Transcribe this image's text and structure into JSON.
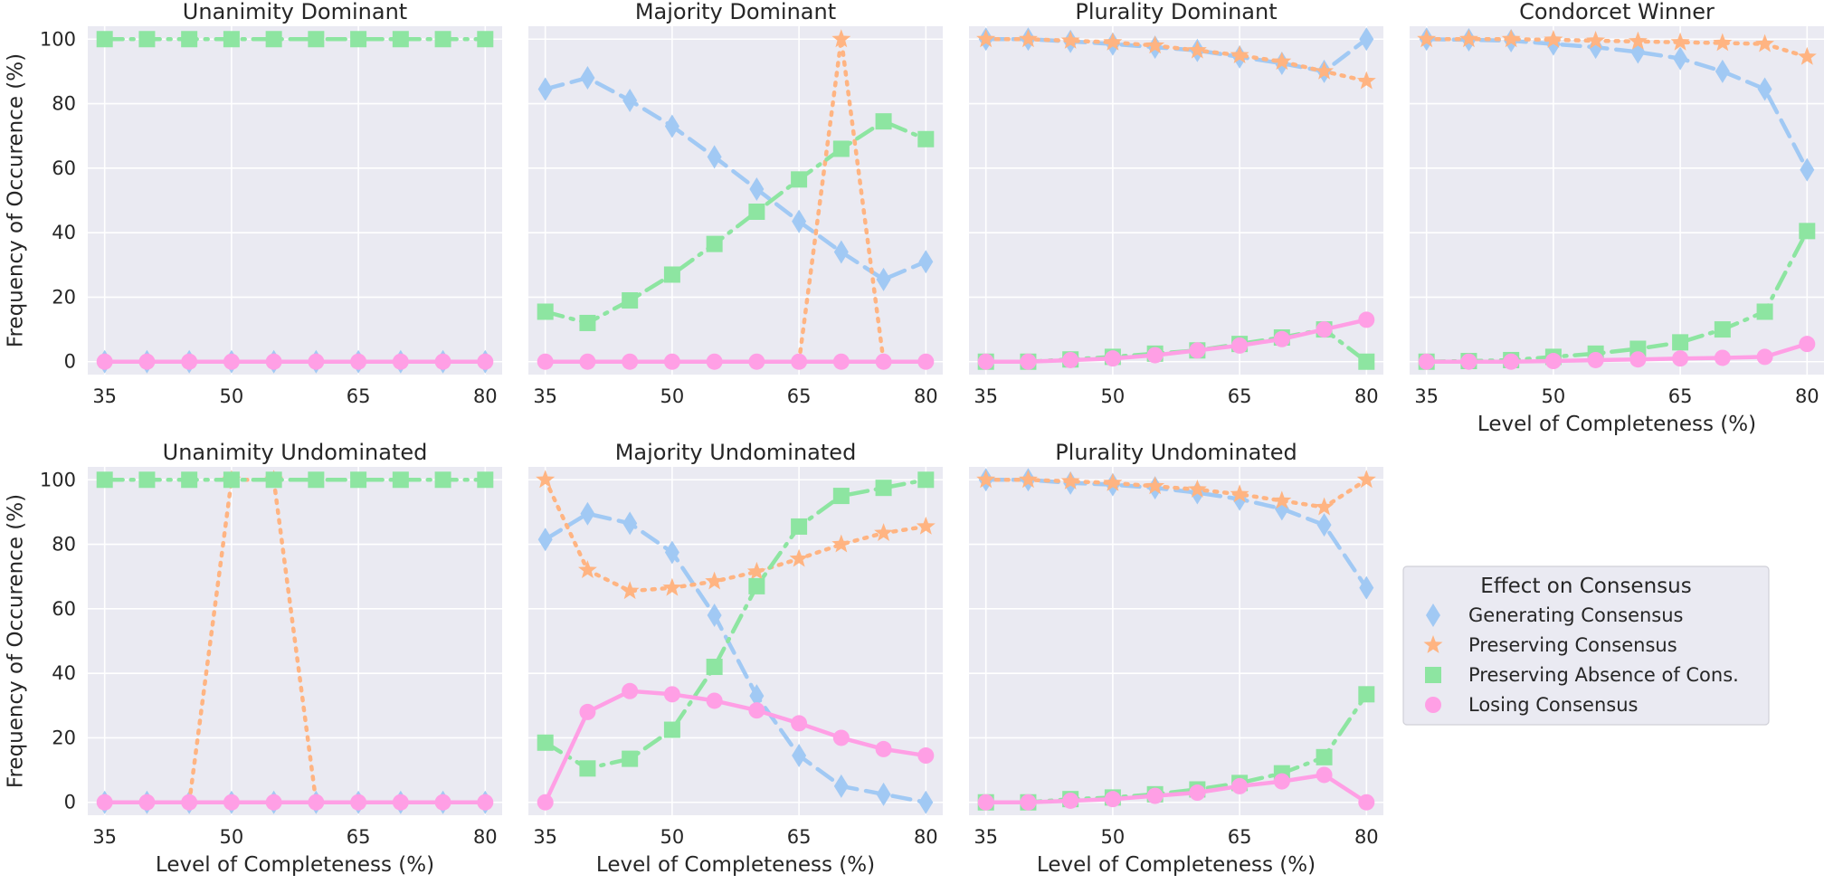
{
  "chart_data": {
    "type": "line",
    "x": [
      35,
      40,
      45,
      50,
      55,
      60,
      65,
      70,
      75,
      80
    ],
    "x_ticks": [
      "35",
      "50",
      "65",
      "80"
    ],
    "y_ticks": [
      "0",
      "20",
      "40",
      "60",
      "80",
      "100"
    ],
    "ylim": [
      -4,
      104
    ],
    "xlim": [
      33,
      82
    ],
    "xlabel": "Level of Completeness (%)",
    "ylabel": "Frequency of Occurence (%)",
    "grid": true,
    "legend": {
      "title": "Effect on Consensus",
      "placement": "right",
      "entries": [
        {
          "key": "gen",
          "label": "Generating Consensus",
          "color": "#a1c9f4",
          "marker": "diamond",
          "dash": "dashed"
        },
        {
          "key": "pres",
          "label": "Preserving Consensus",
          "color": "#ffb482",
          "marker": "star",
          "dash": "dotted"
        },
        {
          "key": "abs",
          "label": "Preserving Absence of Cons.",
          "color": "#8de5a1",
          "marker": "square",
          "dash": "dashdot"
        },
        {
          "key": "lose",
          "label": "Losing Consensus",
          "color": "#ff9fe5",
          "marker": "circle",
          "dash": "solid"
        }
      ]
    },
    "panels": [
      {
        "title": "Unanimity Dominant",
        "series": {
          "gen": [
            0,
            0,
            0,
            0,
            0,
            0,
            0,
            0,
            0,
            0
          ],
          "pres": [
            null,
            null,
            null,
            null,
            null,
            null,
            null,
            null,
            null,
            null
          ],
          "abs": [
            100,
            100,
            100,
            100,
            100,
            100,
            100,
            100,
            100,
            100
          ],
          "lose": [
            0,
            0,
            0,
            0,
            0,
            0,
            0,
            0,
            0,
            0
          ]
        }
      },
      {
        "title": "Majority Dominant",
        "series": {
          "gen": [
            84.5,
            88,
            81,
            73,
            63.5,
            53.5,
            43.5,
            34,
            25.5,
            31
          ],
          "pres": [
            null,
            null,
            null,
            null,
            null,
            null,
            0,
            100,
            0,
            null
          ],
          "abs": [
            15.5,
            12,
            19,
            27,
            36.5,
            46.5,
            56.5,
            66,
            74.5,
            69
          ],
          "lose": [
            0,
            0,
            0,
            0,
            0,
            0,
            0,
            0,
            0,
            0
          ]
        }
      },
      {
        "title": "Plurality Dominant",
        "series": {
          "gen": [
            100,
            100,
            99.3,
            98.5,
            97.5,
            96.5,
            94.5,
            92.5,
            90,
            100
          ],
          "pres": [
            100,
            100,
            99.5,
            99,
            98,
            96.5,
            95,
            93,
            90,
            87
          ],
          "abs": [
            0,
            0,
            0.7,
            1.5,
            2.5,
            3.5,
            5.5,
            7.5,
            10,
            0
          ],
          "lose": [
            0,
            0,
            0.5,
            1,
            2,
            3.5,
            5,
            7,
            10,
            13
          ]
        }
      },
      {
        "title": "Condorcet Winner",
        "series": {
          "gen": [
            100,
            99.8,
            99.5,
            98.5,
            97.5,
            96,
            94,
            90,
            84.5,
            59.5
          ],
          "pres": [
            100,
            100,
            100,
            99.8,
            99.5,
            99.3,
            99,
            98.8,
            98.5,
            94.5
          ],
          "abs": [
            0,
            0.2,
            0.5,
            1.5,
            2.5,
            4,
            6,
            10,
            15.5,
            40.5
          ],
          "lose": [
            0,
            0,
            0,
            0.2,
            0.5,
            0.7,
            1,
            1.2,
            1.5,
            5.5
          ]
        }
      },
      {
        "title": "Unanimity Undominated",
        "series": {
          "gen": [
            0,
            0,
            0,
            0,
            0,
            0,
            0,
            0,
            0,
            0
          ],
          "pres": [
            null,
            null,
            0,
            100,
            100,
            0,
            null,
            null,
            null,
            null
          ],
          "abs": [
            100,
            100,
            100,
            100,
            100,
            100,
            100,
            100,
            100,
            100
          ],
          "lose": [
            0,
            0,
            0,
            0,
            0,
            0,
            0,
            0,
            0,
            0
          ]
        }
      },
      {
        "title": "Majority Undominated",
        "series": {
          "gen": [
            81.5,
            89.5,
            86.5,
            77.5,
            58,
            33,
            14.5,
            5,
            2.5,
            0
          ],
          "pres": [
            100,
            72,
            65.5,
            66.5,
            68.5,
            71.5,
            75.5,
            80,
            83.5,
            85.5
          ],
          "abs": [
            18.5,
            10.5,
            13.5,
            22.5,
            42,
            67,
            85.5,
            95,
            97.5,
            100
          ],
          "lose": [
            0,
            28,
            34.5,
            33.5,
            31.5,
            28.5,
            24.5,
            20,
            16.5,
            14.5
          ]
        }
      },
      {
        "title": "Plurality Undominated",
        "series": {
          "gen": [
            100,
            100,
            99,
            98.5,
            97.5,
            96,
            94,
            91,
            86,
            66.5
          ],
          "pres": [
            100,
            100,
            99.5,
            99,
            98,
            97,
            95.5,
            93.5,
            91.5,
            100
          ],
          "abs": [
            0,
            0,
            1,
            1.5,
            2.5,
            4,
            6,
            9,
            14,
            33.5
          ],
          "lose": [
            0,
            0,
            0.5,
            1,
            2,
            3,
            5,
            6.5,
            8.5,
            0
          ]
        }
      }
    ]
  }
}
